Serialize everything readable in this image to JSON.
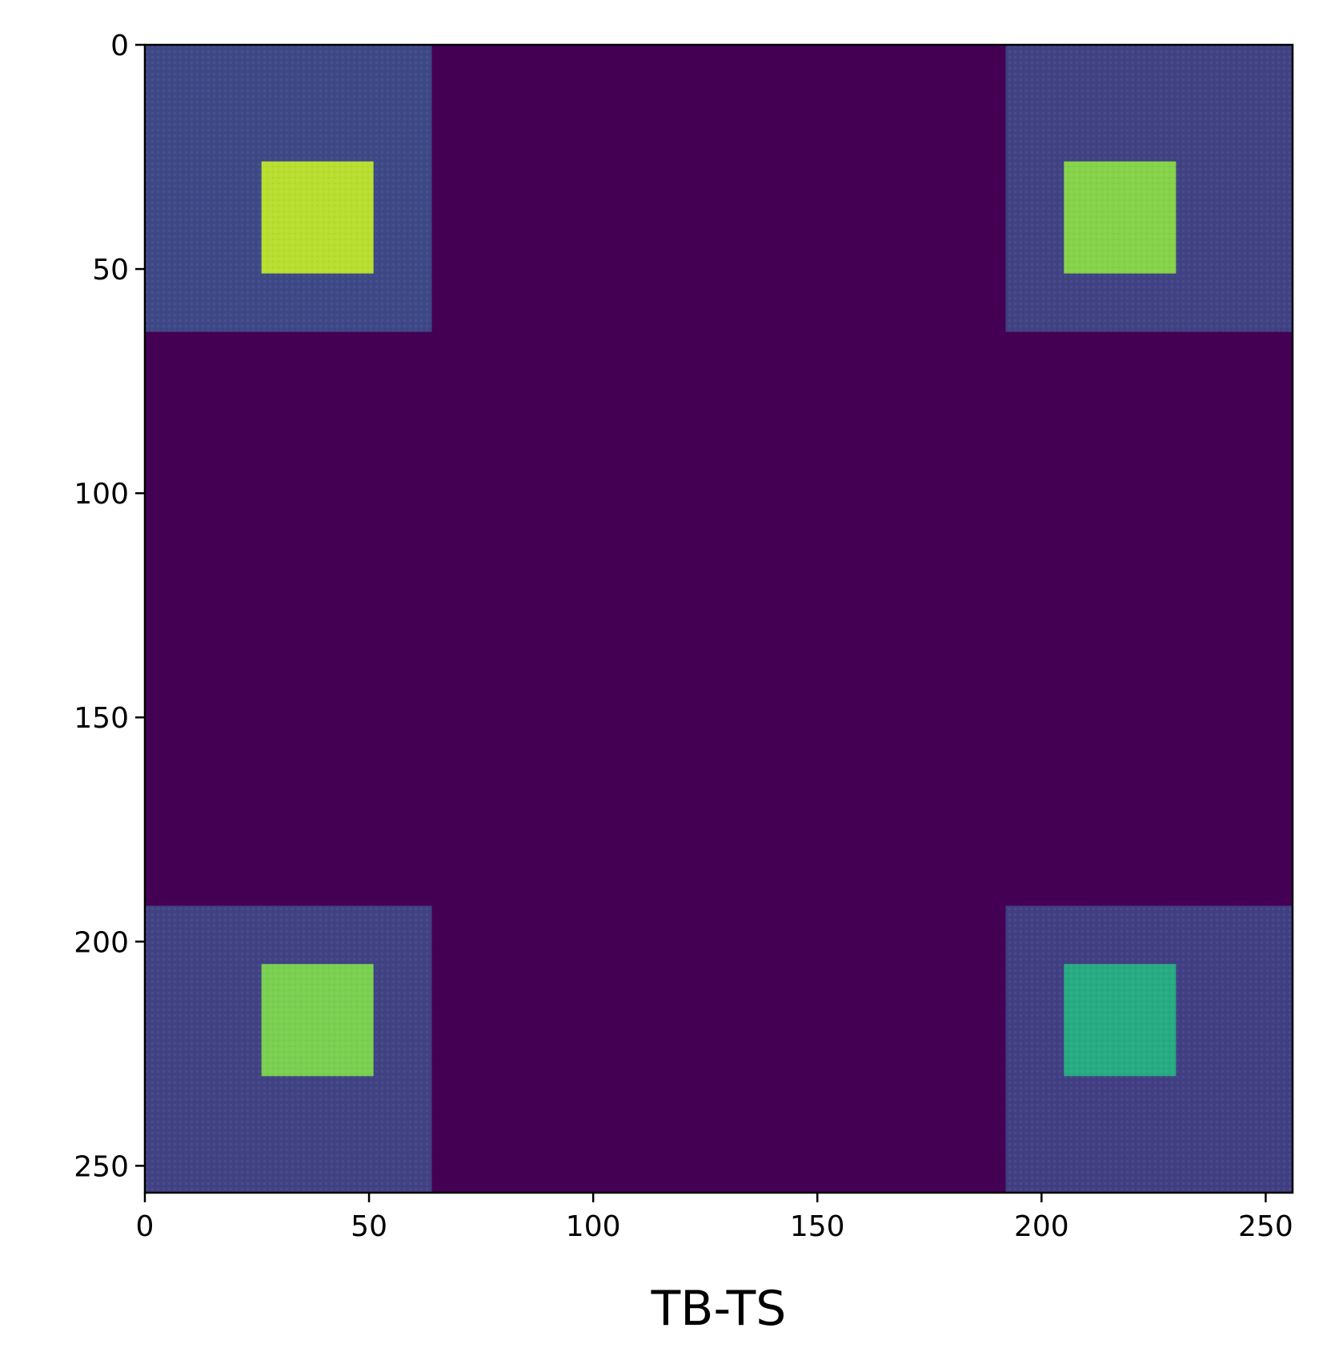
{
  "chart_data": {
    "type": "heatmap",
    "title": "",
    "xlabel": "TB-TS",
    "ylabel": "",
    "colormap": "viridis",
    "xlim": [
      0,
      256
    ],
    "ylim": [
      256,
      0
    ],
    "x_ticks": [
      0,
      50,
      100,
      150,
      200,
      250
    ],
    "y_ticks": [
      0,
      50,
      100,
      150,
      200,
      250
    ],
    "grid": false,
    "background_value": 0.0,
    "regions": [
      {
        "name": "top-left outer block",
        "x": [
          0,
          64
        ],
        "y": [
          0,
          64
        ],
        "value": 0.22
      },
      {
        "name": "top-right outer block",
        "x": [
          192,
          256
        ],
        "y": [
          0,
          64
        ],
        "value": 0.2
      },
      {
        "name": "bottom-left outer block",
        "x": [
          0,
          64
        ],
        "y": [
          192,
          256
        ],
        "value": 0.2
      },
      {
        "name": "bottom-right outer block",
        "x": [
          192,
          256
        ],
        "y": [
          192,
          256
        ],
        "value": 0.19
      },
      {
        "name": "top-left inner block",
        "x": [
          26,
          51
        ],
        "y": [
          26,
          51
        ],
        "value": 0.9
      },
      {
        "name": "top-right inner block",
        "x": [
          205,
          230
        ],
        "y": [
          26,
          51
        ],
        "value": 0.82
      },
      {
        "name": "bottom-left inner block",
        "x": [
          26,
          51
        ],
        "y": [
          205,
          230
        ],
        "value": 0.8
      },
      {
        "name": "bottom-right inner block",
        "x": [
          205,
          230
        ],
        "y": [
          205,
          230
        ],
        "value": 0.62
      }
    ]
  }
}
